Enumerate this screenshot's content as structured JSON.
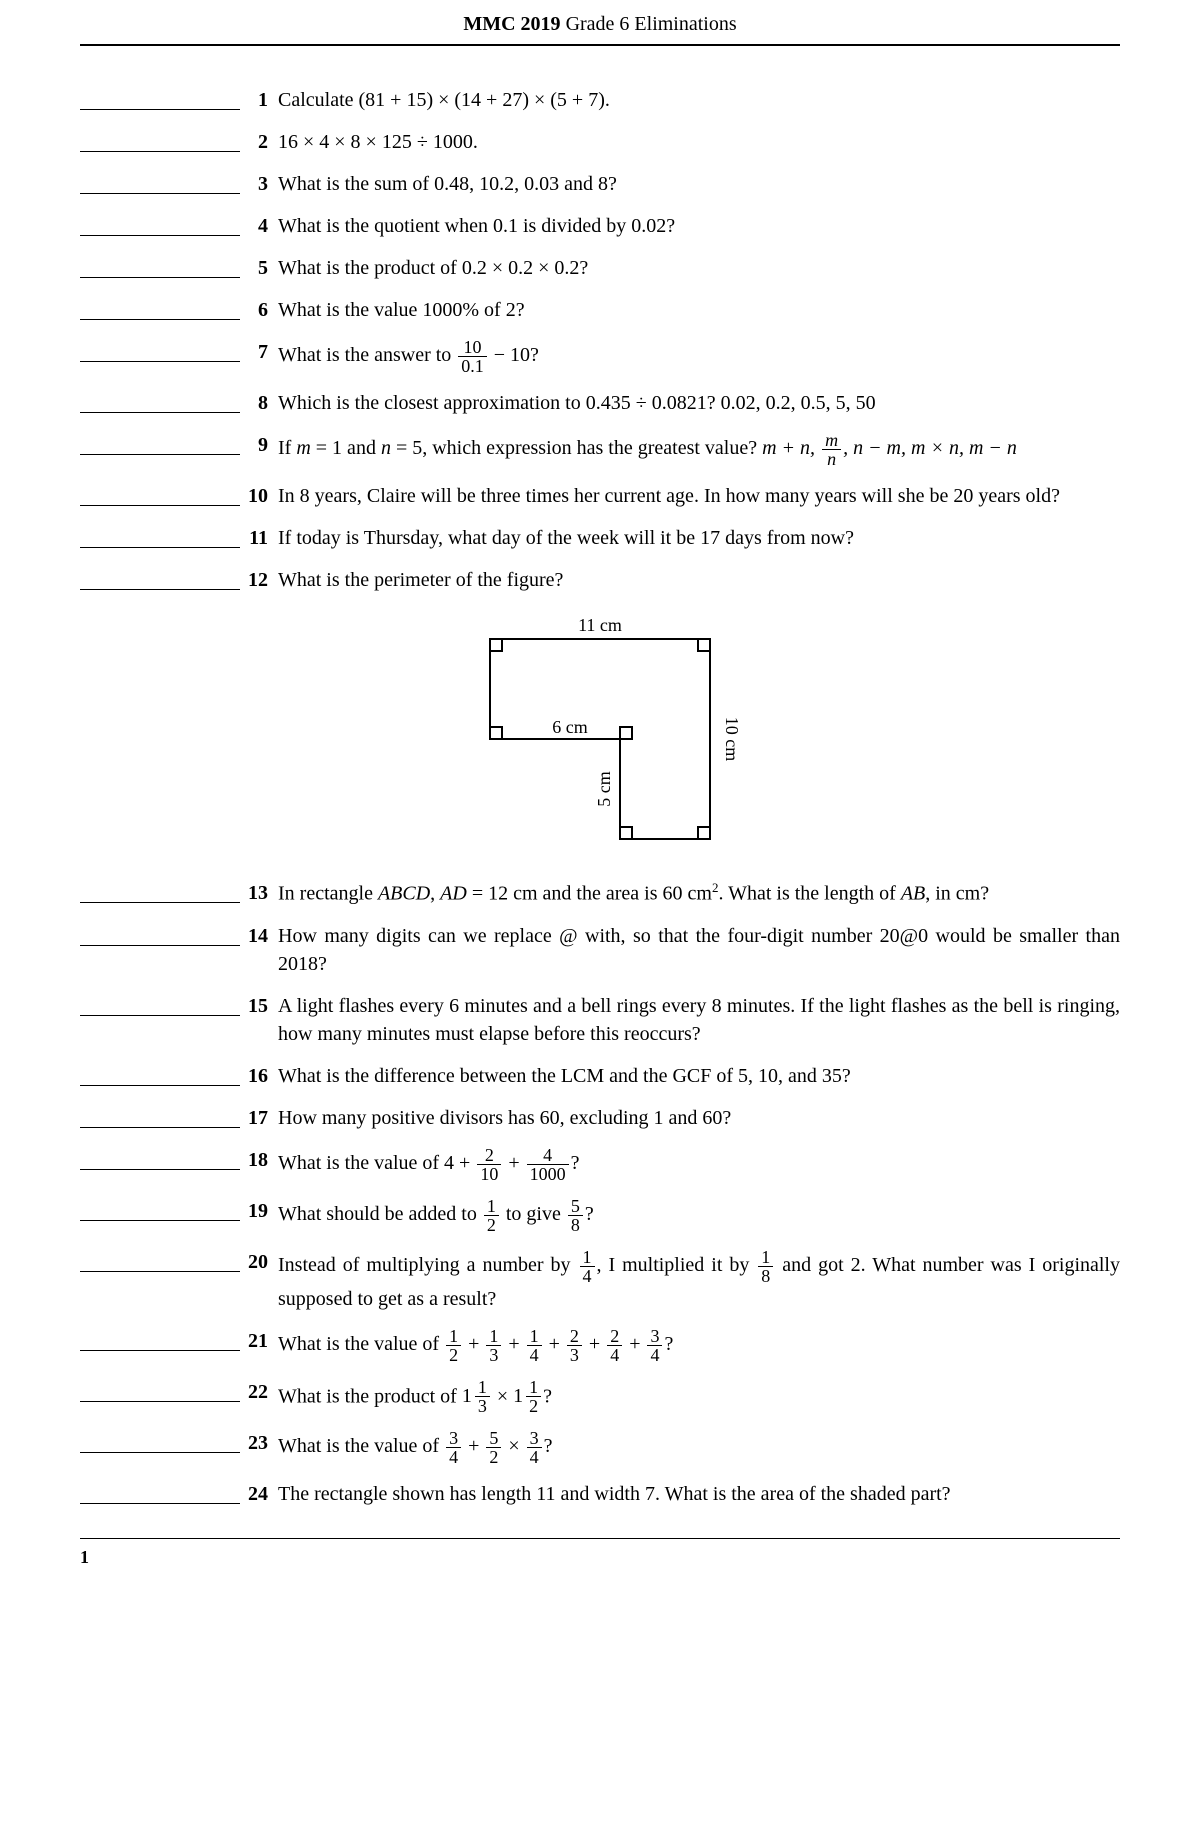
{
  "header_bold": "MMC 2019",
  "header_plain": " Grade 6 Eliminations",
  "page_number": "1",
  "questions": [
    {
      "n": "1",
      "text": "Calculate (81 + 15) × (14 + 27) × (5 + 7)."
    },
    {
      "n": "2",
      "text": "16 × 4 × 8 × 125 ÷ 1000."
    },
    {
      "n": "3",
      "text": "What is the sum of 0.48, 10.2, 0.03 and 8?"
    },
    {
      "n": "4",
      "text": "What is the quotient when 0.1 is divided by 0.02?"
    },
    {
      "n": "5",
      "text": "What is the product of 0.2 × 0.2 × 0.2?"
    },
    {
      "n": "6",
      "text": "What is the value 1000% of 2?"
    },
    {
      "n": "7",
      "pre": "What is the answer to ",
      "frac_top": "10",
      "frac_bot": "0.1",
      "post": " − 10?"
    },
    {
      "n": "8",
      "text": "Which is the closest approximation to 0.435 ÷ 0.0821? 0.02, 0.2, 0.5, 5, 50"
    },
    {
      "n": "9",
      "q9": true,
      "pre": "If ",
      "m": "m",
      "eq1": " = 1 and ",
      "nvar": "n",
      "eq2": " = 5, which expression has the greatest value?  ",
      "opts_prefix": "m + n, ",
      "frac_top": "m",
      "frac_bot": "n",
      "opts_mid": ", n − m, m × n, ",
      "opts_last": "m − n"
    },
    {
      "n": "10",
      "text": "In 8 years, Claire will be three times her current age. In how many years will she be 20 years old?"
    },
    {
      "n": "11",
      "text": "If today is Thursday, what day of the week will it be 17 days from now?"
    },
    {
      "n": "12",
      "text": "What is the perimeter of the figure?"
    },
    {
      "n": "13",
      "q13": true,
      "pre": "In rectangle ",
      "abcd": "ABCD",
      "mid": ", ",
      "ad": "AD",
      "mid2": " = 12 cm and the area is 60 cm",
      "sup": "2",
      "mid3": ". What is the length of ",
      "ab": "AB",
      "post": ", in cm?"
    },
    {
      "n": "14",
      "text": "How many digits can we replace @ with, so that the four-digit number 20@0 would be smaller than 2018?"
    },
    {
      "n": "15",
      "text": "A light flashes every 6 minutes and a bell rings every 8 minutes. If the light flashes as the bell is ringing, how many minutes must elapse before this reoccurs?"
    },
    {
      "n": "16",
      "text": "What is the difference between the LCM and the GCF of 5, 10, and 35?"
    },
    {
      "n": "17",
      "text": "How many positive divisors has 60, excluding 1 and 60?"
    },
    {
      "n": "18",
      "q18": true,
      "pre": "What is the value of 4 + ",
      "f1t": "2",
      "f1b": "10",
      "mid": " + ",
      "f2t": "4",
      "f2b": "1000",
      "post": "?"
    },
    {
      "n": "19",
      "q19": true,
      "pre": "What should be added to ",
      "f1t": "1",
      "f1b": "2",
      "mid": " to give ",
      "f2t": "5",
      "f2b": "8",
      "post": "?"
    },
    {
      "n": "20",
      "q20": true,
      "pre": "Instead of multiplying a number by ",
      "f1t": "1",
      "f1b": "4",
      "mid": ", I multiplied it by ",
      "f2t": "1",
      "f2b": "8",
      "post": " and got 2. What number was I originally supposed to get as a result?"
    },
    {
      "n": "21",
      "q21": true,
      "pre": "What is the value of ",
      "fracs": [
        [
          "1",
          "2"
        ],
        [
          "1",
          "3"
        ],
        [
          "1",
          "4"
        ],
        [
          "2",
          "3"
        ],
        [
          "2",
          "4"
        ],
        [
          "3",
          "4"
        ]
      ],
      "post": "?"
    },
    {
      "n": "22",
      "q22": true,
      "pre": "What is the product of ",
      "w1": "1",
      "f1t": "1",
      "f1b": "3",
      "mid": " × ",
      "w2": "1",
      "f2t": "1",
      "f2b": "2",
      "post": "?"
    },
    {
      "n": "23",
      "q23": true,
      "pre": "What is the value of ",
      "f1t": "3",
      "f1b": "4",
      "mid": " + ",
      "f2t": "5",
      "f2b": "2",
      "mid2": " × ",
      "f3t": "3",
      "f3b": "4",
      "post": "?"
    },
    {
      "n": "24",
      "text": "The rectangle shown has length 11 and width 7. What is the area of the shaded part?"
    }
  ],
  "figure": {
    "top_label": "11 cm",
    "left_label": "6 cm",
    "mid_v_label": "5 cm",
    "right_label": "10 cm"
  }
}
